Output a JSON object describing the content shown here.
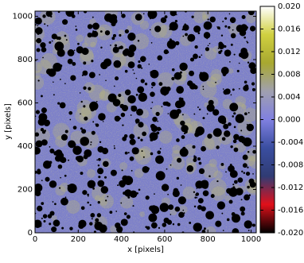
{
  "chart_data": {
    "type": "image",
    "xlabel": "x [pixels]",
    "ylabel": "y [pixels]",
    "xlim": [
      0,
      1024
    ],
    "ylim": [
      0,
      1024
    ],
    "xticks": [
      0,
      200,
      400,
      600,
      800,
      1000
    ],
    "yticks": [
      0,
      200,
      400,
      600,
      800,
      1000
    ],
    "colorbar": {
      "lim": [
        -0.02,
        0.02
      ],
      "ticks": [
        {
          "value": -0.02,
          "label": "-0.020"
        },
        {
          "value": -0.016,
          "label": "-0.016"
        },
        {
          "value": -0.012,
          "label": "-0.012"
        },
        {
          "value": -0.008,
          "label": "-0.008"
        },
        {
          "value": -0.004,
          "label": "-0.004"
        },
        {
          "value": 0,
          "label": "0.000"
        },
        {
          "value": 0.004,
          "label": "0.004"
        },
        {
          "value": 0.008,
          "label": "0.008"
        },
        {
          "value": 0.012,
          "label": "0.012"
        },
        {
          "value": 0.016,
          "label": "0.016"
        },
        {
          "value": 0.02,
          "label": "0.020"
        }
      ],
      "colors": [
        "#000000",
        "#e0101a",
        "#303c74",
        "#3a4ea0",
        "#8080e0",
        "#a0a0b0",
        "#a8a830",
        "#d0d040",
        "#ffffff"
      ]
    }
  }
}
